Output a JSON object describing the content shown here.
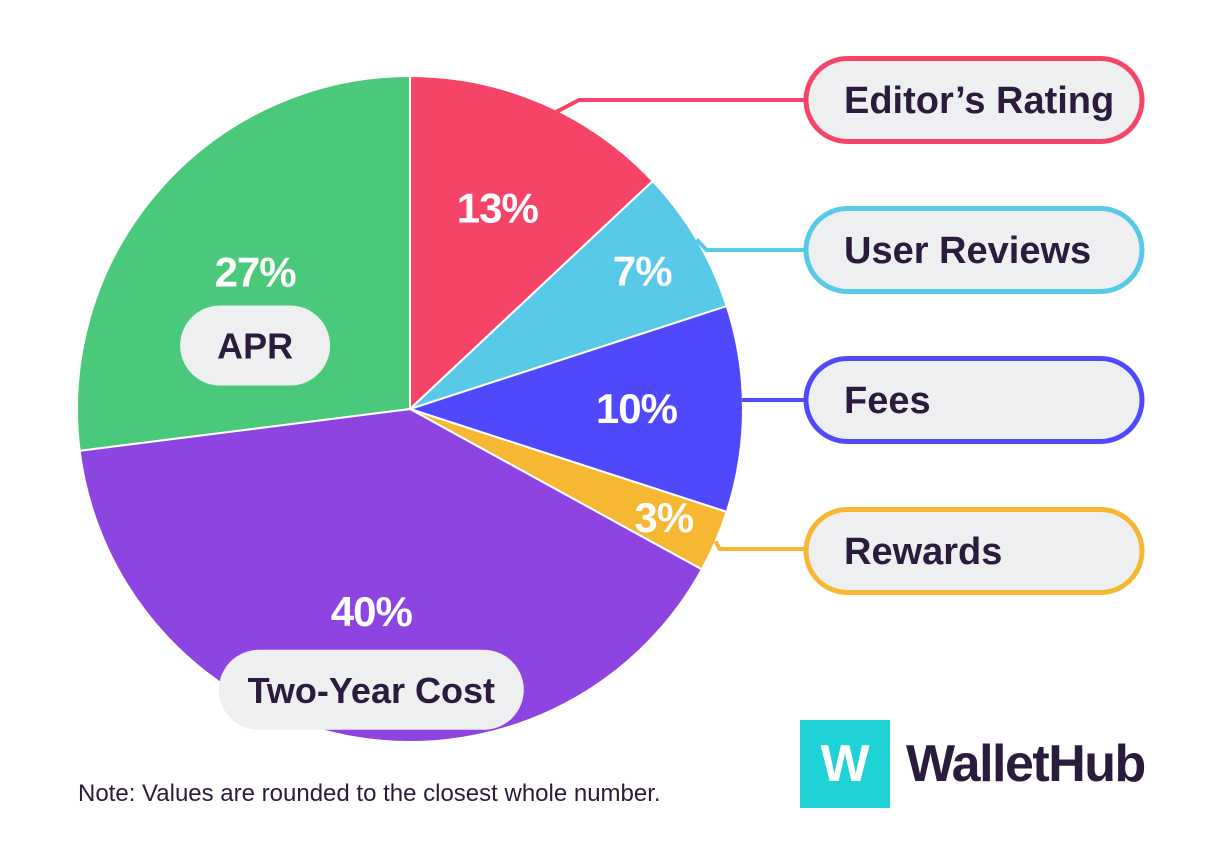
{
  "chart_data": {
    "type": "pie",
    "slices": [
      {
        "label": "Editor’s Rating",
        "value": 13,
        "pct_label": "13%",
        "color": "#f64368"
      },
      {
        "label": "User Reviews",
        "value": 7,
        "pct_label": "7%",
        "color": "#58cae8"
      },
      {
        "label": "Fees",
        "value": 10,
        "pct_label": "10%",
        "color": "#5048fd"
      },
      {
        "label": "Rewards",
        "value": 3,
        "pct_label": "3%",
        "color": "#f6b732"
      },
      {
        "label": "Two-Year Cost",
        "value": 40,
        "pct_label": "40%",
        "color": "#8e44e0"
      },
      {
        "label": "APR",
        "value": 27,
        "pct_label": "27%",
        "color": "#4bc97b"
      }
    ],
    "legend_placement": "right"
  },
  "note": "Note: Values are rounded to the closest whole number.",
  "brand": {
    "logo_letter": "W",
    "name": "WalletHub",
    "mark_color": "#1ed2d6",
    "text_color": "#2b1c3d"
  }
}
